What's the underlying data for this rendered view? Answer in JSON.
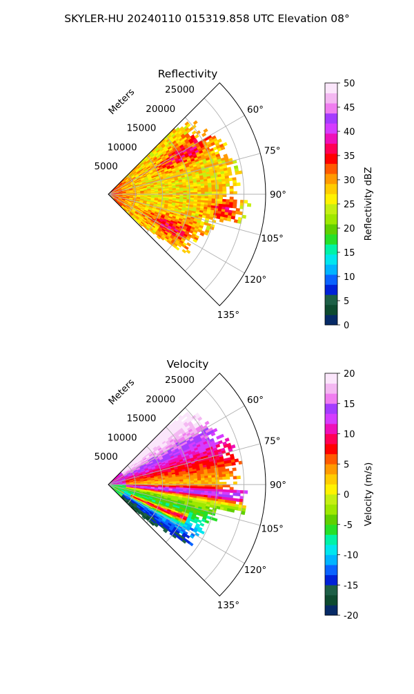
{
  "suptitle": "SKYLER-HU  20240110  015319.858 UTC Elevation 08°",
  "chart_data": [
    {
      "type": "heatmap",
      "projection": "polar-sector",
      "title": "Reflectivity",
      "range_label": "Meters",
      "range_ticks": [
        5000,
        10000,
        15000,
        20000,
        25000
      ],
      "azimuth_ticks": [
        "60°",
        "75°",
        "90°",
        "105°",
        "120°",
        "135°"
      ],
      "azimuth_range_deg": [
        45,
        135
      ],
      "range_lim": [
        0,
        29000
      ],
      "colorbar": {
        "label": "Reflectivity dBZ",
        "range": [
          0,
          50
        ],
        "ticks": [
          0,
          5,
          10,
          15,
          20,
          25,
          30,
          35,
          40,
          45,
          50
        ],
        "colors": [
          "#062a66",
          "#0d4a2f",
          "#1d5f46",
          "#0022d8",
          "#0a63ff",
          "#00b4ff",
          "#00e6ee",
          "#00f2a6",
          "#27e028",
          "#60d000",
          "#9ee800",
          "#c5ef12",
          "#fff200",
          "#ffcc00",
          "#ff9a00",
          "#ff5a00",
          "#ff0000",
          "#ff0055",
          "#ee10b8",
          "#d53cff",
          "#a43cff",
          "#f07df0",
          "#f4b8f2",
          "#fbe6fb"
        ]
      },
      "grid": true
    },
    {
      "type": "heatmap",
      "projection": "polar-sector",
      "title": "Velocity",
      "range_label": "Meters",
      "range_ticks": [
        5000,
        10000,
        15000,
        20000,
        25000
      ],
      "azimuth_ticks": [
        "60°",
        "75°",
        "90°",
        "105°",
        "120°",
        "135°"
      ],
      "azimuth_range_deg": [
        45,
        135
      ],
      "range_lim": [
        0,
        29000
      ],
      "colorbar": {
        "label": "Velocity (m/s)",
        "range": [
          -20,
          20
        ],
        "ticks": [
          -20,
          -15,
          -10,
          -5,
          0,
          5,
          10,
          15,
          20
        ],
        "colors": [
          "#062a66",
          "#0d4a2f",
          "#1d5f46",
          "#0022d8",
          "#0a63ff",
          "#00b4ff",
          "#00e6ee",
          "#00f2a6",
          "#27e028",
          "#60d000",
          "#9ee800",
          "#c5ef12",
          "#fff200",
          "#ffcc00",
          "#ff9a00",
          "#ff5a00",
          "#ff0000",
          "#ff0055",
          "#ee10b8",
          "#d53cff",
          "#a43cff",
          "#f07df0",
          "#f4b8f2",
          "#fbe6fb"
        ]
      },
      "grid": true
    }
  ]
}
